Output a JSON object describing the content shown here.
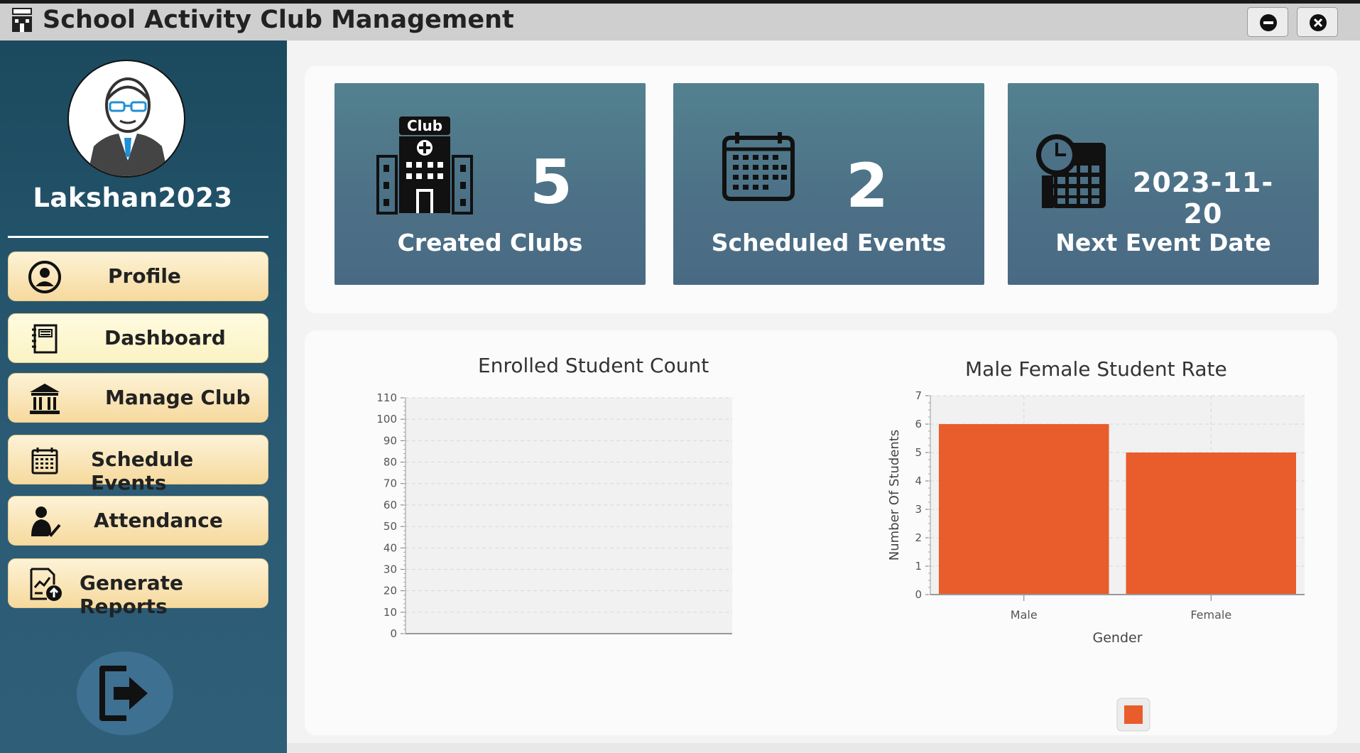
{
  "window": {
    "title": "School Activity Club Management",
    "minimize_icon": "minimize-circle-icon",
    "close_icon": "close-circle-icon"
  },
  "sidebar": {
    "username": "Lakshan2023",
    "items": [
      {
        "label": "Profile",
        "icon": "user-circle-icon"
      },
      {
        "label": "Dashboard",
        "icon": "notebook-icon"
      },
      {
        "label": "Manage Club",
        "icon": "building-icon"
      },
      {
        "label": "Schedule Events",
        "icon": "calendar-icon"
      },
      {
        "label": "Attendance",
        "icon": "person-check-icon"
      },
      {
        "label": "Generate Reports",
        "icon": "report-upload-icon"
      }
    ],
    "logout_icon": "logout-icon"
  },
  "stats": [
    {
      "value": "5",
      "label": "Created Clubs",
      "icon": "club-building-icon",
      "icon_text": "Club"
    },
    {
      "value": "2",
      "label": "Scheduled Events",
      "icon": "calendar-icon"
    },
    {
      "value": "2023-11-20",
      "label": "Next Event Date",
      "icon": "clock-calendar-icon"
    }
  ],
  "colors": {
    "sidebar": "#1b4a5e",
    "card": "#4c7086",
    "nav_button": "#f6d99d",
    "bar": "#e95c2b"
  },
  "chart_data": [
    {
      "type": "area",
      "title": "Enrolled Student Count",
      "xlabel": "",
      "ylabel": "",
      "ylim": [
        0,
        110
      ],
      "yticks": [
        "0",
        "10",
        "20",
        "30",
        "40",
        "50",
        "60",
        "70",
        "80",
        "90",
        "100",
        "110"
      ],
      "series": [],
      "grid": true
    },
    {
      "type": "bar",
      "title": "Male Female Student Rate",
      "xlabel": "Gender",
      "ylabel": "Number Of Students",
      "ylim": [
        0,
        7
      ],
      "yticks": [
        "0",
        "1",
        "2",
        "3",
        "4",
        "5",
        "6",
        "7"
      ],
      "categories": [
        "Male",
        "Female"
      ],
      "series": [
        {
          "values": [
            6,
            5
          ],
          "color": "#e95c2b"
        }
      ],
      "legend": "bottom",
      "grid": true
    }
  ]
}
